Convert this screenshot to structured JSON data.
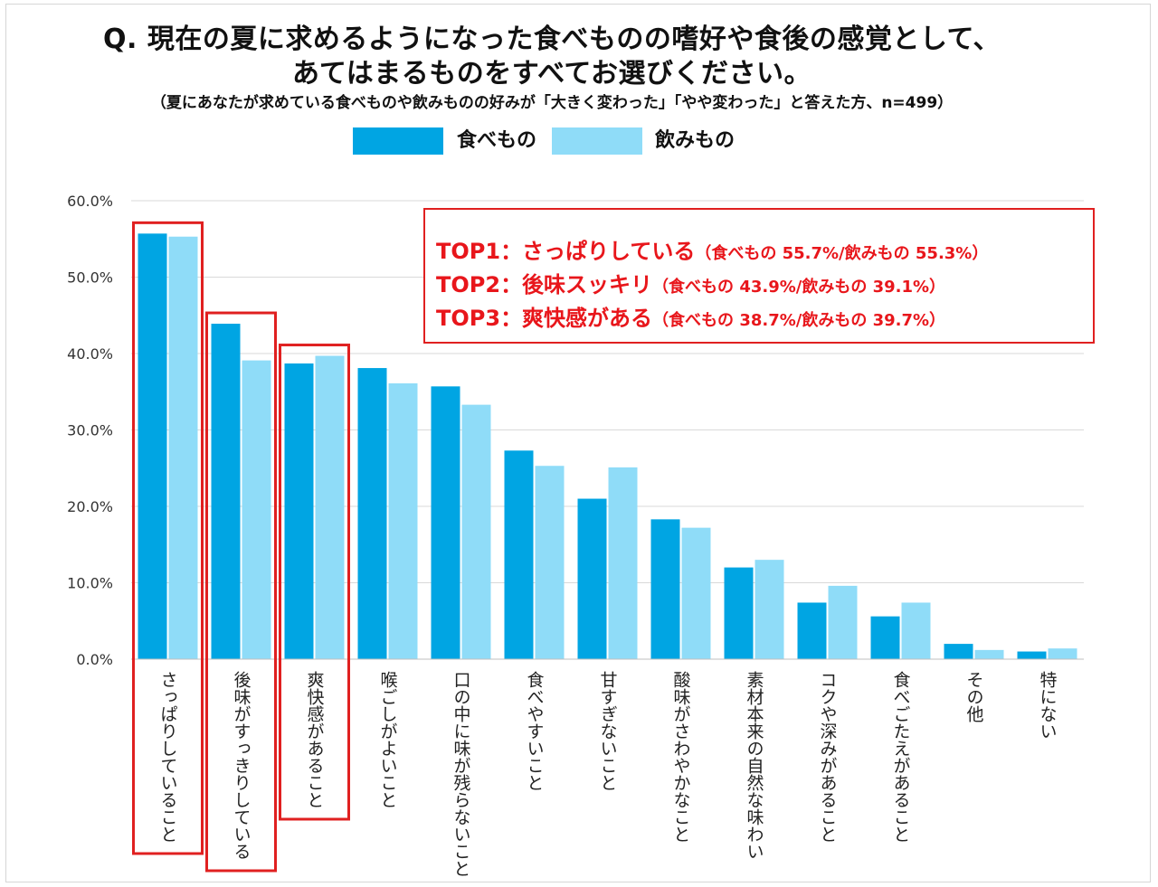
{
  "title_line1": "Q. 現在の夏に求めるようになった食べものの嗜好や食後の感覚として、",
  "title_line2": "あてはまるものをすべてお選びください。",
  "subtitle": "（夏にあなたが求めている食べものや飲みものの好みが「大きく変わった」「やや変わった」と答えた方、n=499）",
  "legend": [
    {
      "label": "食べもの",
      "color": "#00a5e3"
    },
    {
      "label": "飲みもの",
      "color": "#8fdcf8"
    }
  ],
  "callout": [
    {
      "main": "TOP1：さっぱりしている",
      "detail": "（食べもの 55.7%/飲みもの 55.3%）"
    },
    {
      "main": "TOP2：後味スッキリ",
      "detail": "（食べもの 43.9%/飲みもの 39.1%）"
    },
    {
      "main": "TOP3：爽快感がある",
      "detail": "（食べもの 38.7%/飲みもの 39.7%）"
    }
  ],
  "highlight_color": "#e02020",
  "chart_data": {
    "type": "bar",
    "title": "",
    "xlabel": "",
    "ylabel": "",
    "ylim": [
      0,
      60
    ],
    "yticks": [
      "0.0%",
      "10.0%",
      "20.0%",
      "30.0%",
      "40.0%",
      "50.0%",
      "60.0%"
    ],
    "grid": true,
    "legend_position": "top",
    "categories": [
      "さっぱりしていること",
      "後味がすっきりしている",
      "爽快感があること",
      "喉ごしがよいこと",
      "口の中に味が残らないこと",
      "食べやすいこと",
      "甘すぎないこと",
      "酸味がさわやかなこと",
      "素材本来の自然な味わい",
      "コクや深みがあること",
      "食べごたえがあること",
      "その他",
      "特にない"
    ],
    "series": [
      {
        "name": "食べもの",
        "color": "#00a5e3",
        "values": [
          55.7,
          43.9,
          38.7,
          38.1,
          35.7,
          27.3,
          21.0,
          18.3,
          12.0,
          7.4,
          5.6,
          2.0,
          1.0
        ]
      },
      {
        "name": "飲みもの",
        "color": "#8fdcf8",
        "values": [
          55.3,
          39.1,
          39.7,
          36.1,
          33.3,
          25.3,
          25.1,
          17.2,
          13.0,
          9.6,
          7.4,
          1.2,
          1.4
        ]
      }
    ],
    "highlighted_categories": [
      0,
      1,
      2
    ]
  }
}
